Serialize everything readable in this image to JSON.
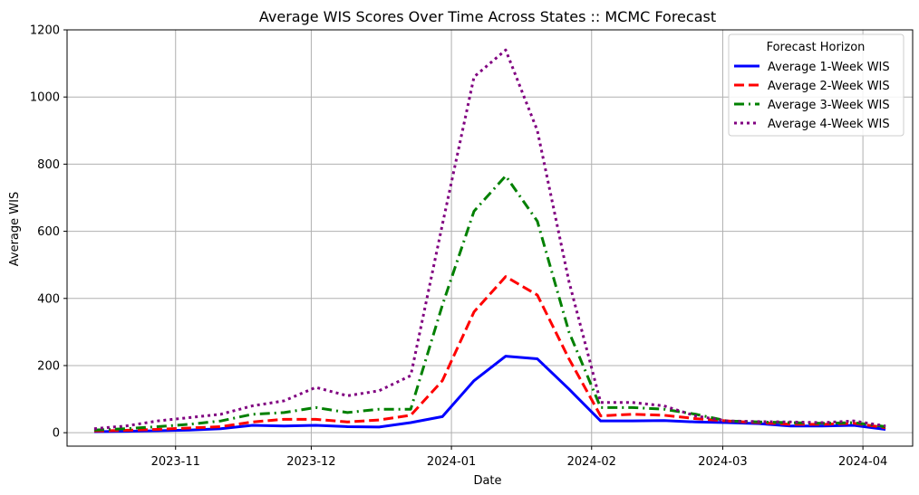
{
  "chart_data": {
    "type": "line",
    "title": "Average WIS Scores Over Time Across States :: MCMC Forecast",
    "xlabel": "Date",
    "ylabel": "Average WIS",
    "ylim": [
      -40,
      1200
    ],
    "xlim": [
      "2023-10-08",
      "2024-04-12"
    ],
    "y_ticks": [
      0,
      200,
      400,
      600,
      800,
      1000,
      1200
    ],
    "x_ticks": [
      "2023-11-01",
      "2023-12-01",
      "2024-01-01",
      "2024-02-01",
      "2024-03-01",
      "2024-04-01"
    ],
    "x_tick_labels": [
      "2023-11",
      "2023-12",
      "2024-01",
      "2024-02",
      "2024-03",
      "2024-04"
    ],
    "grid": true,
    "legend_title": "Forecast Horizon",
    "legend_position": "top-right",
    "x": [
      "2023-10-14",
      "2023-10-21",
      "2023-10-28",
      "2023-11-04",
      "2023-11-11",
      "2023-11-18",
      "2023-11-25",
      "2023-12-02",
      "2023-12-09",
      "2023-12-16",
      "2023-12-23",
      "2023-12-30",
      "2024-01-06",
      "2024-01-13",
      "2024-01-20",
      "2024-01-27",
      "2024-02-03",
      "2024-02-10",
      "2024-02-17",
      "2024-02-24",
      "2024-03-02",
      "2024-03-09",
      "2024-03-16",
      "2024-03-23",
      "2024-03-30",
      "2024-04-06"
    ],
    "series": [
      {
        "name": "Average 1-Week WIS",
        "color": "#0000ff",
        "style": "solid",
        "values": [
          3,
          4,
          6,
          8,
          12,
          22,
          20,
          22,
          18,
          17,
          30,
          48,
          155,
          228,
          220,
          130,
          35,
          35,
          36,
          32,
          30,
          27,
          20,
          20,
          22,
          10
        ]
      },
      {
        "name": "Average 2-Week WIS",
        "color": "#ff0000",
        "style": "dashed",
        "values": [
          5,
          7,
          10,
          14,
          18,
          32,
          40,
          40,
          32,
          38,
          52,
          155,
          360,
          465,
          410,
          220,
          50,
          55,
          52,
          42,
          35,
          30,
          25,
          25,
          28,
          15
        ]
      },
      {
        "name": "Average 3-Week WIS",
        "color": "#008000",
        "style": "dashdot",
        "values": [
          8,
          12,
          18,
          25,
          35,
          55,
          60,
          75,
          60,
          70,
          70,
          380,
          660,
          765,
          630,
          300,
          75,
          75,
          70,
          55,
          35,
          32,
          30,
          28,
          30,
          18
        ]
      },
      {
        "name": "Average 4-Week WIS",
        "color": "#800080",
        "style": "dotted",
        "values": [
          12,
          20,
          35,
          45,
          55,
          80,
          95,
          135,
          110,
          125,
          170,
          620,
          1060,
          1140,
          900,
          450,
          90,
          90,
          80,
          50,
          35,
          33,
          32,
          30,
          35,
          20
        ]
      }
    ]
  }
}
